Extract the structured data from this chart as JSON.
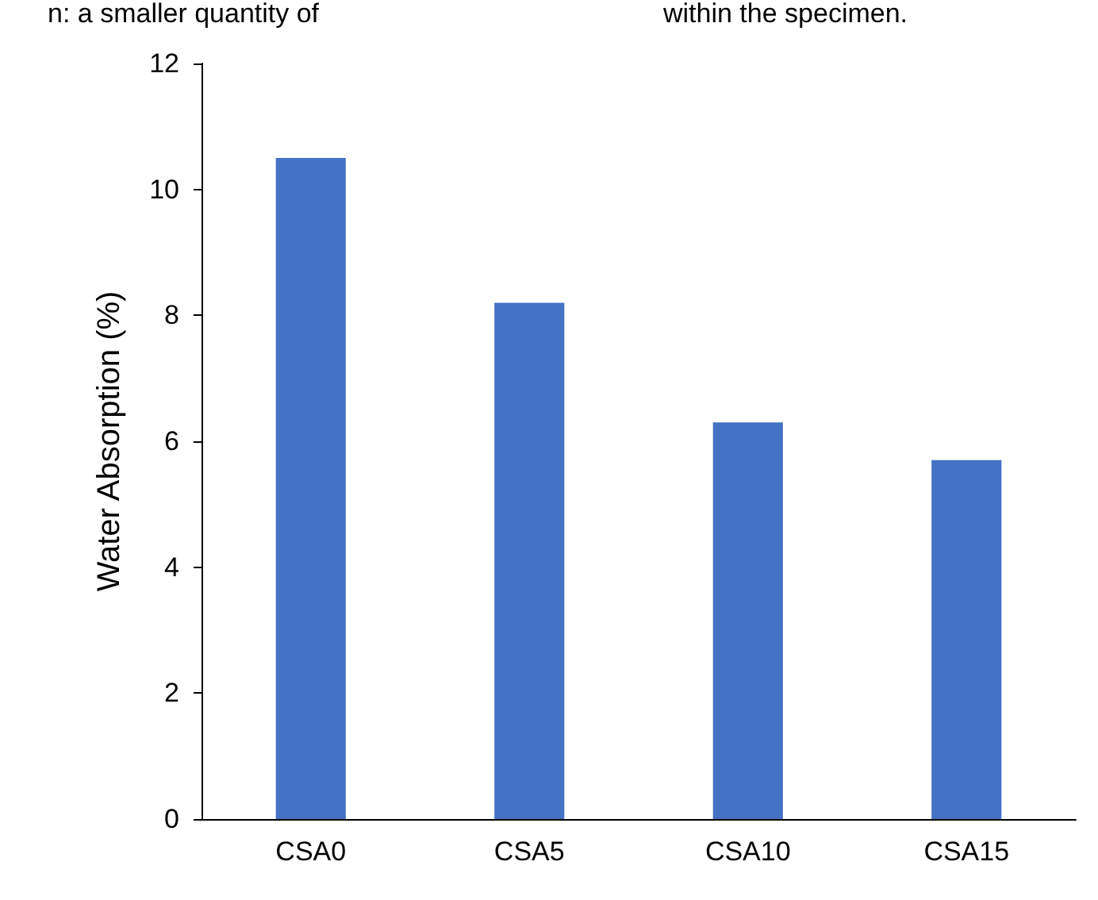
{
  "chart_data": {
    "type": "bar",
    "ylabel": "Water Absorption (%)",
    "categories": [
      "CSA0",
      "CSA5",
      "CSA10",
      "CSA15"
    ],
    "values": [
      10.5,
      8.2,
      6.3,
      5.7
    ],
    "color": "#4472c4",
    "ylim": [
      0,
      12
    ],
    "yticks": [
      0,
      2,
      4,
      6,
      8,
      10,
      12
    ],
    "grid": false,
    "annotations": [
      "n: a smaller quantity of",
      "within the specimen."
    ]
  }
}
